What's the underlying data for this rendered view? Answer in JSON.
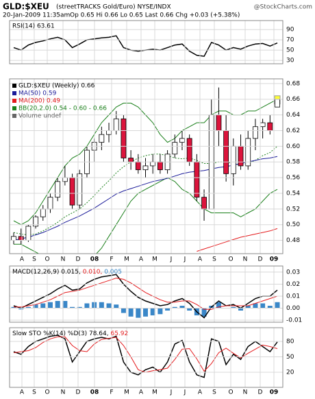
{
  "header": {
    "title": "GLD:$XEU",
    "subtitle": "(streetTRACKS Gold/Euro) NYSE/INDX",
    "credit": "@StockCharts.com",
    "date": "20-Jan-2009 11:35am",
    "quote": "Op 0.65 Hi 0.66 Lo 0.65 Last 0.66 Chg +0.03 (+5.38%)"
  },
  "x_labels": [
    "A",
    "S",
    "O",
    "N",
    "D",
    "08",
    "F",
    "M",
    "A",
    "M",
    "J",
    "J",
    "A",
    "S",
    "O",
    "N",
    "D",
    "09"
  ],
  "chart_data": [
    {
      "type": "line",
      "label": "RSI(14) 63.61",
      "ylim": [
        23.5,
        107.6
      ],
      "yticks": [
        30,
        50,
        70,
        90
      ],
      "series": [
        {
          "color": "#000000",
          "values": [
            55,
            50,
            60,
            65,
            68,
            72,
            75,
            70,
            55,
            62,
            70,
            72,
            74,
            75,
            78,
            55,
            50,
            48,
            50,
            52,
            50,
            55,
            60,
            62,
            48,
            40,
            38,
            65,
            60,
            50,
            55,
            52,
            58,
            62,
            63,
            58,
            64
          ]
        }
      ]
    },
    {
      "type": "candlestick",
      "ylim": [
        0.463,
        0.686
      ],
      "yticks": [
        0.48,
        {
          "value": 0.5,
          "label": "0.50"
        },
        0.52,
        0.54,
        0.56,
        0.58,
        {
          "value": 0.6,
          "label": "0.60"
        },
        0.62,
        0.64,
        0.66,
        0.68
      ],
      "name": "GLD:$XEU (Weekly) 0.66",
      "up_color": "#ffffff",
      "down_color": "#dc143c",
      "open": [
        0.48,
        0.485,
        0.48,
        0.498,
        0.51,
        0.52,
        0.535,
        0.555,
        0.56,
        0.525,
        0.565,
        0.595,
        0.605,
        0.615,
        0.62,
        0.635,
        0.585,
        0.58,
        0.57,
        0.575,
        0.58,
        0.57,
        0.59,
        0.605,
        0.61,
        0.58,
        0.535,
        0.52,
        0.64,
        0.62,
        0.565,
        0.6,
        0.575,
        0.61,
        0.625,
        0.63,
        0.65
      ],
      "high": [
        0.49,
        0.495,
        0.5,
        0.512,
        0.525,
        0.54,
        0.56,
        0.575,
        0.565,
        0.57,
        0.6,
        0.61,
        0.625,
        0.63,
        0.645,
        0.64,
        0.595,
        0.59,
        0.585,
        0.59,
        0.59,
        0.595,
        0.615,
        0.62,
        0.615,
        0.59,
        0.545,
        0.66,
        0.675,
        0.64,
        0.61,
        0.615,
        0.62,
        0.635,
        0.635,
        0.64,
        0.66
      ],
      "low": [
        0.475,
        0.475,
        0.478,
        0.495,
        0.505,
        0.515,
        0.53,
        0.55,
        0.52,
        0.52,
        0.56,
        0.58,
        0.595,
        0.605,
        0.615,
        0.58,
        0.57,
        0.565,
        0.56,
        0.565,
        0.565,
        0.565,
        0.585,
        0.595,
        0.575,
        0.53,
        0.505,
        0.52,
        0.6,
        0.555,
        0.55,
        0.57,
        0.57,
        0.595,
        0.61,
        0.615,
        0.65
      ],
      "close": [
        0.485,
        0.48,
        0.498,
        0.51,
        0.52,
        0.535,
        0.555,
        0.56,
        0.525,
        0.565,
        0.595,
        0.605,
        0.615,
        0.62,
        0.635,
        0.585,
        0.58,
        0.57,
        0.575,
        0.58,
        0.57,
        0.59,
        0.605,
        0.61,
        0.58,
        0.535,
        0.52,
        0.64,
        0.62,
        0.565,
        0.6,
        0.575,
        0.61,
        0.625,
        0.63,
        0.62,
        0.66
      ],
      "series": [
        {
          "name": "MA(50) 0.59",
          "color": "#1a1a99",
          "values": [
            0.48,
            0.482,
            0.484,
            0.487,
            0.49,
            0.494,
            0.498,
            0.503,
            0.507,
            0.511,
            0.516,
            0.521,
            0.527,
            0.533,
            0.539,
            0.543,
            0.546,
            0.549,
            0.552,
            0.555,
            0.557,
            0.559,
            0.562,
            0.565,
            0.567,
            0.568,
            0.569,
            0.571,
            0.573,
            0.574,
            0.576,
            0.578,
            0.58,
            0.582,
            0.584,
            0.585,
            0.587
          ]
        },
        {
          "name": "MA(200) 0.49",
          "color": "#e41a1c",
          "values": [
            null,
            null,
            null,
            null,
            null,
            null,
            null,
            null,
            null,
            null,
            null,
            null,
            null,
            null,
            null,
            null,
            null,
            null,
            null,
            null,
            null,
            null,
            null,
            null,
            null,
            0.466,
            0.469,
            0.472,
            0.475,
            0.478,
            0.481,
            0.484,
            0.486,
            0.488,
            0.49,
            0.492,
            0.495
          ]
        }
      ],
      "bb": {
        "name": "BB(20,2.0) 0.54 - 0.60 - 0.66",
        "color": "#1a7f1a",
        "upper": [
          0.505,
          0.5,
          0.505,
          0.515,
          0.53,
          0.545,
          0.56,
          0.575,
          0.585,
          0.59,
          0.6,
          0.615,
          0.63,
          0.64,
          0.65,
          0.655,
          0.655,
          0.65,
          0.64,
          0.63,
          0.615,
          0.605,
          0.61,
          0.62,
          0.625,
          0.63,
          0.63,
          0.64,
          0.645,
          0.645,
          0.64,
          0.64,
          0.645,
          0.645,
          0.65,
          0.655,
          0.66
        ],
        "middle": [
          0.49,
          0.488,
          0.487,
          0.488,
          0.492,
          0.497,
          0.503,
          0.51,
          0.515,
          0.52,
          0.528,
          0.537,
          0.547,
          0.556,
          0.566,
          0.574,
          0.58,
          0.585,
          0.588,
          0.59,
          0.59,
          0.588,
          0.585,
          0.584,
          0.585,
          0.582,
          0.578,
          0.578,
          0.58,
          0.58,
          0.578,
          0.576,
          0.578,
          0.582,
          0.588,
          0.592,
          0.6
        ],
        "lower": [
          0.475,
          0.475,
          0.47,
          0.465,
          0.46,
          0.455,
          0.45,
          0.445,
          0.445,
          0.45,
          0.455,
          0.46,
          0.47,
          0.485,
          0.5,
          0.515,
          0.53,
          0.54,
          0.545,
          0.55,
          0.555,
          0.56,
          0.555,
          0.545,
          0.54,
          0.53,
          0.52,
          0.515,
          0.515,
          0.515,
          0.515,
          0.51,
          0.515,
          0.52,
          0.53,
          0.54,
          0.545
        ]
      },
      "legend_extra": "Volume undef"
    },
    {
      "type": "line",
      "ylim": [
        -0.0117,
        0.0351
      ],
      "yticks": [
        -0.01,
        {
          "value": 0,
          "label": "0.00"
        },
        0.01,
        0.02,
        0.03
      ],
      "label_parts": [
        {
          "text": "MACD(12,26,9) 0.015, ",
          "color": "#000000"
        },
        {
          "text": "0.010, ",
          "color": "#e41a1c"
        },
        {
          "text": "0.005",
          "color": "#3a87c8"
        }
      ],
      "series": [
        {
          "style": "bar",
          "color": "#3a87c8",
          "values": [
            0.001,
            -0.001,
            0.001,
            0.003,
            0.004,
            0.005,
            0.006,
            0.006,
            0.001,
            0.001,
            0.004,
            0.005,
            0.005,
            0.004,
            0.003,
            -0.004,
            -0.007,
            -0.008,
            -0.007,
            -0.006,
            -0.005,
            -0.002,
            0.001,
            0.002,
            -0.002,
            -0.006,
            -0.007,
            0.002,
            0.005,
            0,
            0.001,
            -0.002,
            0.002,
            0.004,
            0.004,
            0.002,
            0.005
          ]
        },
        {
          "color": "#000000",
          "values": [
            0.002,
            0,
            0.003,
            0.006,
            0.009,
            0.012,
            0.016,
            0.019,
            0.015,
            0.016,
            0.021,
            0.024,
            0.026,
            0.027,
            0.028,
            0.02,
            0.014,
            0.009,
            0.006,
            0.004,
            0.002,
            0.003,
            0.006,
            0.008,
            0.004,
            -0.003,
            -0.008,
            0.001,
            0.006,
            0.002,
            0.003,
            0,
            0.004,
            0.008,
            0.01,
            0.01,
            0.015
          ]
        },
        {
          "color": "#e41a1c",
          "values": [
            0.001,
            0.001,
            0.002,
            0.003,
            0.005,
            0.007,
            0.01,
            0.013,
            0.014,
            0.015,
            0.017,
            0.019,
            0.021,
            0.023,
            0.025,
            0.024,
            0.021,
            0.017,
            0.013,
            0.01,
            0.007,
            0.005,
            0.005,
            0.006,
            0.006,
            0.003,
            -0.001,
            -0.001,
            0.001,
            0.002,
            0.002,
            0.002,
            0.002,
            0.004,
            0.006,
            0.008,
            0.01
          ]
        }
      ]
    },
    {
      "type": "line",
      "ylim": [
        -9.3,
        106.7
      ],
      "yticks": [
        20,
        50,
        80
      ],
      "label_parts": [
        {
          "text": "Slow STO %K(14) %D(3) 78.64, ",
          "color": "#000000"
        },
        {
          "text": "65.92",
          "color": "#e41a1c"
        }
      ],
      "series": [
        {
          "color": "#000000",
          "values": [
            60,
            55,
            70,
            80,
            85,
            90,
            92,
            85,
            40,
            60,
            80,
            85,
            88,
            85,
            90,
            40,
            20,
            15,
            25,
            30,
            20,
            40,
            75,
            82,
            40,
            15,
            10,
            85,
            80,
            35,
            55,
            45,
            70,
            80,
            70,
            60,
            79
          ]
        },
        {
          "color": "#e41a1c",
          "values": [
            58,
            60,
            62,
            68,
            78,
            85,
            89,
            89,
            72,
            62,
            60,
            75,
            84,
            86,
            88,
            72,
            50,
            25,
            20,
            23,
            25,
            28,
            45,
            65,
            66,
            46,
            22,
            37,
            58,
            67,
            57,
            48,
            57,
            65,
            73,
            70,
            66
          ]
        }
      ]
    }
  ]
}
